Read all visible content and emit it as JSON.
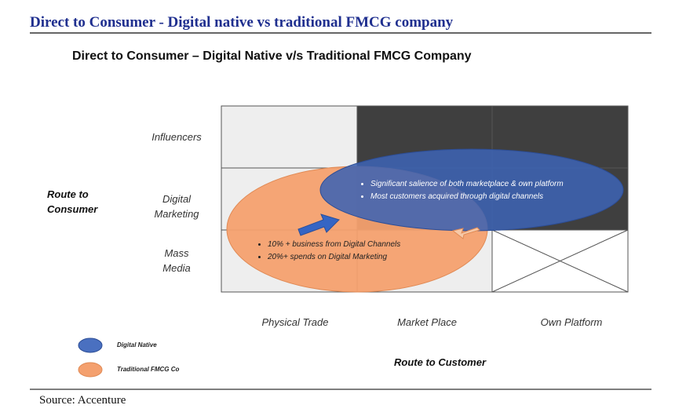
{
  "header": {
    "title": "Direct to Consumer - Digital native vs traditional FMCG company"
  },
  "diagram": {
    "title": "Direct to Consumer – Digital Native v/s Traditional FMCG Company",
    "y_axis_title": "Route to Consumer",
    "x_axis_title": "Route to Customer",
    "rows": [
      "Influencers",
      "Digital Marketing",
      "Mass Media"
    ],
    "columns": [
      "Physical Trade",
      "Market Place",
      "Own Platform"
    ],
    "digital_native_bullets": [
      "Significant  salience of both marketplace &  own platform",
      "Most customers acquired through digital channels"
    ],
    "traditional_bullets": [
      "10% + business from Digital Channels",
      "20%+ spends on Digital Marketing"
    ],
    "legend": [
      "Digital Native",
      "Traditional FMCG Co"
    ]
  },
  "footer": {
    "source": "Source: Accenture"
  }
}
